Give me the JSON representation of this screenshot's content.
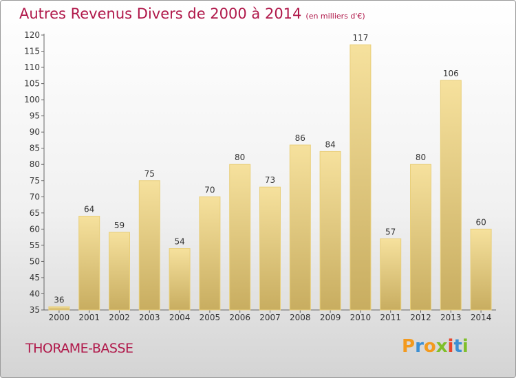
{
  "title": "Autres Revenus Divers de 2000 à 2014",
  "title_unit": "(en milliers d'€)",
  "commune": "THORAME-BASSE",
  "brand": {
    "letters": [
      "P",
      "r",
      "o",
      "x",
      "i",
      "t",
      "i"
    ],
    "colors": [
      "#f39a1e",
      "#3b8fd4",
      "#f39a1e",
      "#7fbf2a",
      "#e8452c",
      "#3b8fd4",
      "#7fbf2a"
    ]
  },
  "colors": {
    "bar_top": "#f6e19d",
    "bar_bottom": "#c8ad60",
    "title": "#b0184a"
  },
  "chart_data": {
    "type": "bar",
    "categories": [
      "2000",
      "2001",
      "2002",
      "2003",
      "2004",
      "2005",
      "2006",
      "2007",
      "2008",
      "2009",
      "2010",
      "2011",
      "2012",
      "2013",
      "2014"
    ],
    "values": [
      36,
      64,
      59,
      75,
      54,
      70,
      80,
      73,
      86,
      84,
      117,
      57,
      80,
      106,
      60
    ],
    "title": "Autres Revenus Divers de 2000 à 2014",
    "xlabel": "",
    "ylabel": "",
    "ylim": [
      35,
      120
    ],
    "yticks": [
      35,
      40,
      45,
      50,
      55,
      60,
      65,
      70,
      75,
      80,
      85,
      90,
      95,
      100,
      105,
      110,
      115,
      120
    ],
    "grid": false,
    "legend": "none"
  }
}
